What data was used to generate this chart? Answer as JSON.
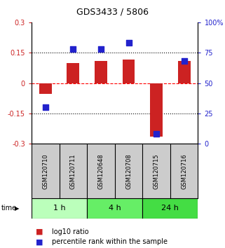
{
  "title": "GDS3433 / 5806",
  "samples": [
    "GSM120710",
    "GSM120711",
    "GSM120648",
    "GSM120708",
    "GSM120715",
    "GSM120716"
  ],
  "time_groups": [
    {
      "label": "1 h",
      "indices": [
        0,
        1
      ],
      "color": "#bbffbb"
    },
    {
      "label": "4 h",
      "indices": [
        2,
        3
      ],
      "color": "#66ee66"
    },
    {
      "label": "24 h",
      "indices": [
        4,
        5
      ],
      "color": "#44dd44"
    }
  ],
  "log10_ratio": [
    -0.055,
    0.1,
    0.11,
    0.115,
    -0.265,
    0.11
  ],
  "percentile_rank": [
    30,
    78,
    78,
    83,
    8,
    68
  ],
  "bar_color": "#cc2222",
  "dot_color": "#2222cc",
  "ylim_left": [
    -0.3,
    0.3
  ],
  "ylim_right": [
    0,
    100
  ],
  "yticks_left": [
    -0.3,
    -0.15,
    0.0,
    0.15,
    0.3
  ],
  "yticks_right": [
    0,
    25,
    50,
    75,
    100
  ],
  "ytick_labels_left": [
    "-0.3",
    "-0.15",
    "0",
    "0.15",
    "0.3"
  ],
  "ytick_labels_right": [
    "0",
    "25",
    "50",
    "75",
    "100%"
  ],
  "bar_width": 0.45,
  "dot_size": 40,
  "legend_items": [
    "log10 ratio",
    "percentile rank within the sample"
  ],
  "legend_colors": [
    "#cc2222",
    "#2222cc"
  ],
  "bg_sample_color": "#cccccc",
  "left_axis_color": "#cc2222",
  "right_axis_color": "#2222cc",
  "title_fontsize": 9,
  "tick_fontsize": 7,
  "sample_fontsize": 6,
  "time_fontsize": 8,
  "legend_fontsize": 7
}
